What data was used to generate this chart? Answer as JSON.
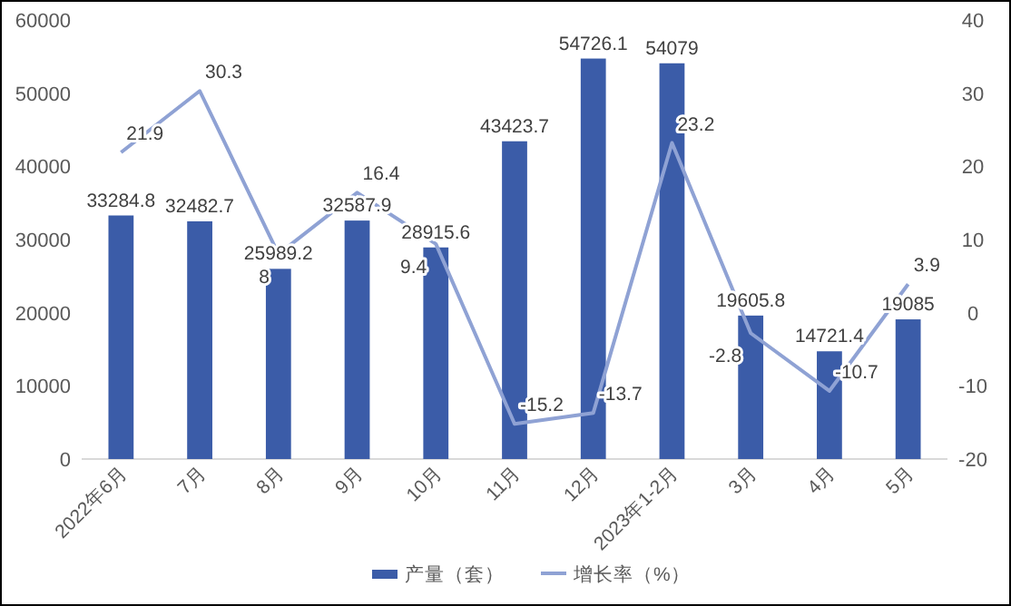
{
  "chart_data": {
    "type": "bar",
    "categories": [
      "2022年6月",
      "7月",
      "8月",
      "9月",
      "10月",
      "11月",
      "12月",
      "2023年1-2月",
      "3月",
      "4月",
      "5月"
    ],
    "series": [
      {
        "name": "产量（套）",
        "color": "#3b5ca8",
        "values": [
          33284.8,
          32482.7,
          25989.2,
          32587.9,
          28915.6,
          43423.7,
          54726.1,
          54079,
          19605.8,
          14721.4,
          19085
        ]
      },
      {
        "name": "增长率（%）",
        "type": "line",
        "axis": "y2",
        "color": "#8fa2d4",
        "values": [
          21.9,
          30.3,
          8,
          16.4,
          9.4,
          -15.2,
          -13.7,
          23.2,
          -2.8,
          -10.7,
          3.9
        ]
      }
    ],
    "ylim": [
      0,
      60000
    ],
    "yticks": [
      0,
      10000,
      20000,
      30000,
      40000,
      50000,
      60000
    ],
    "y2lim": [
      -20,
      40
    ],
    "y2ticks": [
      -20,
      -10,
      0,
      10,
      20,
      30,
      40
    ],
    "data_labels": true,
    "legend": "bottom",
    "marker": "none",
    "line_style": "solid",
    "grid": false
  }
}
